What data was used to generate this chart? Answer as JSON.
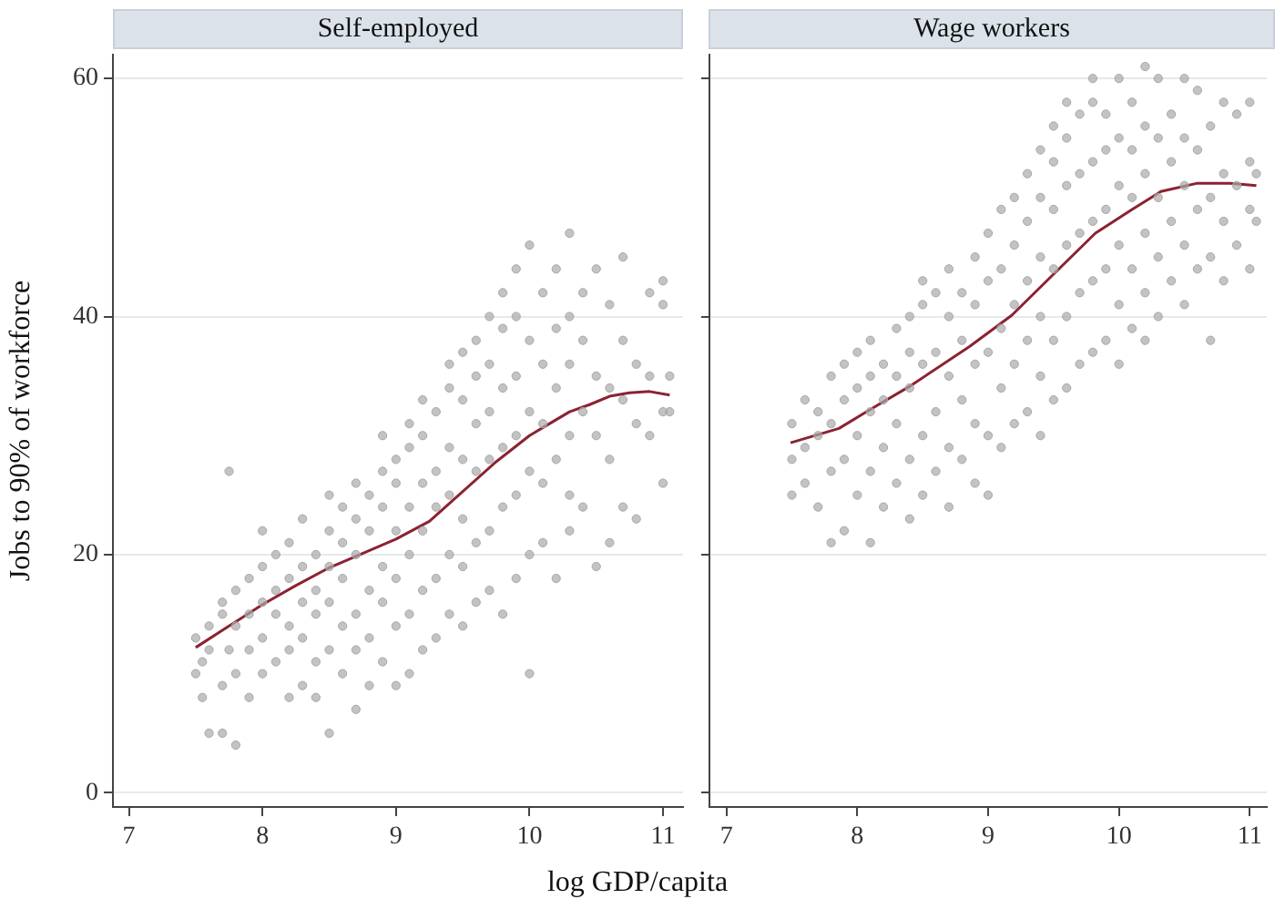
{
  "chart_data": [
    {
      "type": "scatter",
      "title": "Self-employed",
      "ylabel": "Jobs to 90% of workforce",
      "xlabel": "log GDP/capita",
      "xlim": [
        6.88,
        11.15
      ],
      "xticks": [
        7,
        8,
        9,
        10,
        11
      ],
      "ylim": [
        -1.2,
        62
      ],
      "yticks": [
        0,
        20,
        40,
        60
      ],
      "grid": "y",
      "legend": false,
      "series": [
        {
          "marker": "circle",
          "color": "#a8a8a8",
          "x": [
            7.5,
            7.5,
            7.55,
            7.55,
            7.6,
            7.6,
            7.6,
            7.7,
            7.7,
            7.7,
            7.7,
            7.75,
            7.75,
            7.8,
            7.8,
            7.8,
            7.8,
            7.9,
            7.9,
            7.9,
            7.9,
            8,
            8,
            8,
            8,
            8,
            8.1,
            8.1,
            8.1,
            8.1,
            8.2,
            8.2,
            8.2,
            8.2,
            8.2,
            8.3,
            8.3,
            8.3,
            8.3,
            8.3,
            8.4,
            8.4,
            8.4,
            8.4,
            8.4,
            8.5,
            8.5,
            8.5,
            8.5,
            8.5,
            8.5,
            8.6,
            8.6,
            8.6,
            8.6,
            8.6,
            8.7,
            8.7,
            8.7,
            8.7,
            8.7,
            8.7,
            8.8,
            8.8,
            8.8,
            8.8,
            8.8,
            8.9,
            8.9,
            8.9,
            8.9,
            8.9,
            8.9,
            9,
            9,
            9,
            9,
            9,
            9,
            9.1,
            9.1,
            9.1,
            9.1,
            9.1,
            9.1,
            9.2,
            9.2,
            9.2,
            9.2,
            9.2,
            9.2,
            9.3,
            9.3,
            9.3,
            9.3,
            9.3,
            9.4,
            9.4,
            9.4,
            9.4,
            9.4,
            9.4,
            9.5,
            9.5,
            9.5,
            9.5,
            9.5,
            9.5,
            9.6,
            9.6,
            9.6,
            9.6,
            9.6,
            9.6,
            9.7,
            9.7,
            9.7,
            9.7,
            9.7,
            9.7,
            9.8,
            9.8,
            9.8,
            9.8,
            9.8,
            9.8,
            9.9,
            9.9,
            9.9,
            9.9,
            9.9,
            9.9,
            10,
            10,
            10,
            10,
            10,
            10,
            10.1,
            10.1,
            10.1,
            10.1,
            10.1,
            10.2,
            10.2,
            10.2,
            10.2,
            10.2,
            10.3,
            10.3,
            10.3,
            10.3,
            10.3,
            10.3,
            10.4,
            10.4,
            10.4,
            10.4,
            10.5,
            10.5,
            10.5,
            10.5,
            10.6,
            10.6,
            10.6,
            10.6,
            10.7,
            10.7,
            10.7,
            10.7,
            10.8,
            10.8,
            10.8,
            10.9,
            10.9,
            10.9,
            11,
            11,
            11,
            11,
            11.05,
            11.05
          ],
          "values": [
            10,
            13,
            8,
            11,
            5,
            12,
            14,
            5,
            9,
            15,
            16,
            27,
            12,
            4,
            10,
            14,
            17,
            8,
            12,
            15,
            18,
            10,
            13,
            16,
            19,
            22,
            11,
            15,
            17,
            20,
            8,
            12,
            14,
            18,
            21,
            9,
            13,
            16,
            19,
            23,
            8,
            11,
            15,
            17,
            20,
            5,
            12,
            16,
            19,
            22,
            25,
            10,
            14,
            18,
            21,
            24,
            7,
            12,
            15,
            20,
            23,
            26,
            9,
            13,
            17,
            22,
            25,
            11,
            16,
            19,
            24,
            27,
            30,
            9,
            14,
            18,
            22,
            26,
            28,
            10,
            15,
            20,
            24,
            29,
            31,
            12,
            17,
            22,
            26,
            30,
            33,
            13,
            18,
            24,
            27,
            32,
            15,
            20,
            25,
            29,
            34,
            36,
            14,
            19,
            23,
            28,
            33,
            37,
            16,
            21,
            27,
            31,
            35,
            38,
            17,
            22,
            28,
            32,
            36,
            40,
            15,
            24,
            29,
            34,
            39,
            42,
            18,
            25,
            30,
            35,
            40,
            44,
            10,
            20,
            27,
            32,
            38,
            46,
            21,
            26,
            31,
            36,
            42,
            18,
            28,
            34,
            39,
            44,
            22,
            25,
            30,
            36,
            40,
            47,
            24,
            32,
            38,
            42,
            19,
            30,
            35,
            44,
            21,
            28,
            34,
            41,
            24,
            33,
            38,
            45,
            23,
            31,
            36,
            30,
            35,
            42,
            26,
            32,
            41,
            43,
            32,
            35
          ]
        },
        {
          "type": "line",
          "marker": "none",
          "line_style": "solid",
          "color": "#8b2232",
          "x": [
            7.5,
            7.75,
            8,
            8.25,
            8.5,
            8.75,
            9,
            9.25,
            9.5,
            9.75,
            10,
            10.15,
            10.3,
            10.45,
            10.6,
            10.75,
            10.9,
            11.05
          ],
          "values": [
            12.2,
            14,
            15.8,
            17.4,
            18.9,
            20.1,
            21.3,
            22.8,
            25.3,
            27.8,
            30,
            31,
            32,
            32.6,
            33.3,
            33.6,
            33.7,
            33.4
          ]
        }
      ]
    },
    {
      "type": "scatter",
      "title": "Wage workers",
      "xlim": [
        6.87,
        11.13
      ],
      "xticks": [
        7,
        8,
        9,
        10,
        11
      ],
      "ylim": [
        -1.2,
        62
      ],
      "yticks": [
        0,
        20,
        40,
        60
      ],
      "grid": "y",
      "legend": false,
      "tick_labels": "x",
      "series": [
        {
          "marker": "circle",
          "color": "#a8a8a8",
          "x": [
            7.5,
            7.5,
            7.5,
            7.6,
            7.6,
            7.6,
            7.7,
            7.7,
            7.7,
            7.8,
            7.8,
            7.8,
            7.8,
            7.9,
            7.9,
            7.9,
            7.9,
            8,
            8,
            8,
            8,
            8.1,
            8.1,
            8.1,
            8.1,
            8.1,
            8.2,
            8.2,
            8.2,
            8.2,
            8.3,
            8.3,
            8.3,
            8.3,
            8.4,
            8.4,
            8.4,
            8.4,
            8.4,
            8.5,
            8.5,
            8.5,
            8.5,
            8.5,
            8.6,
            8.6,
            8.6,
            8.6,
            8.7,
            8.7,
            8.7,
            8.7,
            8.7,
            8.8,
            8.8,
            8.8,
            8.8,
            8.9,
            8.9,
            8.9,
            8.9,
            8.9,
            9,
            9,
            9,
            9,
            9,
            9.1,
            9.1,
            9.1,
            9.1,
            9.1,
            9.2,
            9.2,
            9.2,
            9.2,
            9.2,
            9.3,
            9.3,
            9.3,
            9.3,
            9.3,
            9.4,
            9.4,
            9.4,
            9.4,
            9.4,
            9.4,
            9.5,
            9.5,
            9.5,
            9.5,
            9.5,
            9.5,
            9.6,
            9.6,
            9.6,
            9.6,
            9.6,
            9.6,
            9.7,
            9.7,
            9.7,
            9.7,
            9.7,
            9.8,
            9.8,
            9.8,
            9.8,
            9.8,
            9.8,
            9.9,
            9.9,
            9.9,
            9.9,
            9.9,
            10,
            10,
            10,
            10,
            10,
            10,
            10.1,
            10.1,
            10.1,
            10.1,
            10.1,
            10.2,
            10.2,
            10.2,
            10.2,
            10.2,
            10.2,
            10.3,
            10.3,
            10.3,
            10.3,
            10.3,
            10.4,
            10.4,
            10.4,
            10.4,
            10.5,
            10.5,
            10.5,
            10.5,
            10.5,
            10.6,
            10.6,
            10.6,
            10.6,
            10.7,
            10.7,
            10.7,
            10.7,
            10.8,
            10.8,
            10.8,
            10.8,
            10.9,
            10.9,
            10.9,
            11,
            11,
            11,
            11,
            11.05,
            11.05
          ],
          "values": [
            25,
            28,
            31,
            26,
            29,
            33,
            24,
            30,
            32,
            21,
            27,
            31,
            35,
            22,
            28,
            33,
            36,
            25,
            30,
            34,
            37,
            21,
            27,
            32,
            35,
            38,
            24,
            29,
            33,
            36,
            26,
            31,
            35,
            39,
            23,
            28,
            34,
            37,
            40,
            25,
            30,
            36,
            41,
            43,
            27,
            32,
            37,
            42,
            24,
            29,
            35,
            40,
            44,
            28,
            33,
            38,
            42,
            26,
            31,
            36,
            41,
            45,
            25,
            30,
            37,
            43,
            47,
            29,
            34,
            39,
            44,
            49,
            31,
            36,
            41,
            46,
            50,
            32,
            38,
            43,
            48,
            52,
            30,
            35,
            40,
            45,
            50,
            54,
            33,
            38,
            44,
            49,
            53,
            56,
            34,
            40,
            46,
            51,
            55,
            58,
            36,
            42,
            47,
            52,
            57,
            37,
            43,
            48,
            53,
            58,
            60,
            38,
            44,
            49,
            54,
            57,
            36,
            41,
            46,
            51,
            55,
            60,
            39,
            44,
            50,
            54,
            58,
            38,
            42,
            47,
            52,
            56,
            61,
            40,
            45,
            50,
            55,
            60,
            43,
            48,
            53,
            57,
            41,
            46,
            51,
            55,
            60,
            44,
            49,
            54,
            59,
            38,
            45,
            50,
            56,
            43,
            48,
            52,
            58,
            46,
            51,
            57,
            44,
            49,
            53,
            58,
            48,
            52
          ]
        },
        {
          "type": "line",
          "marker": "none",
          "line_style": "solid",
          "color": "#8b2232",
          "x": [
            7.49,
            7.86,
            8.1,
            8.41,
            8.86,
            9.18,
            9.55,
            9.82,
            10.1,
            10.32,
            10.6,
            10.85,
            11.05
          ],
          "values": [
            29.4,
            30.6,
            32.2,
            34.2,
            37.5,
            40.1,
            44.1,
            47,
            49,
            50.5,
            51.2,
            51.2,
            51
          ]
        }
      ]
    }
  ]
}
